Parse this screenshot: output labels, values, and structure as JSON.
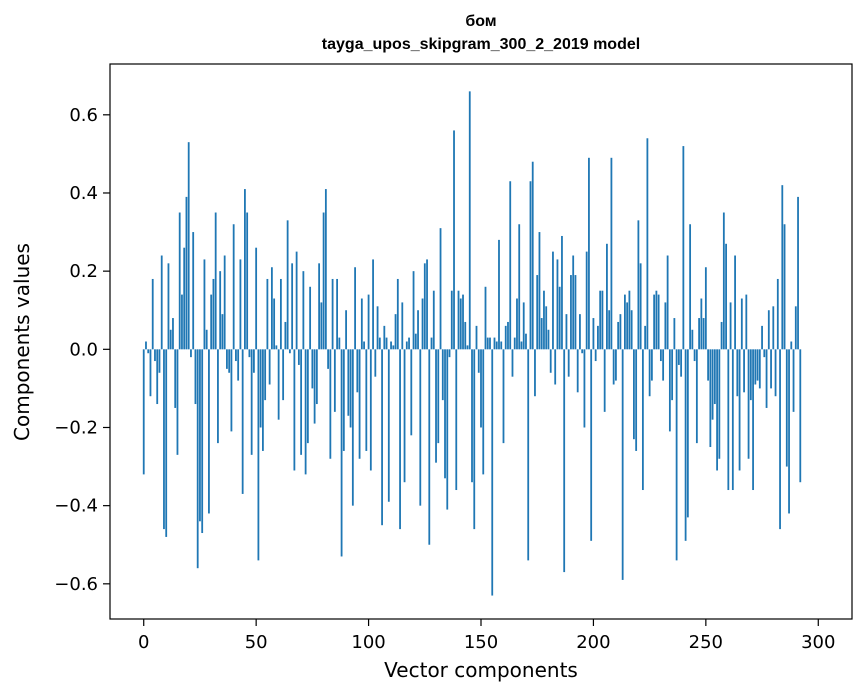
{
  "chart_data": {
    "type": "bar",
    "title": "бом",
    "subtitle": "tayga_upos_skipgram_300_2_2019 model",
    "xlabel": "Vector components",
    "ylabel": "Components values",
    "xlim": [
      -15,
      315
    ],
    "ylim": [
      -0.69,
      0.73
    ],
    "xticks": [
      0,
      50,
      100,
      150,
      200,
      250,
      300
    ],
    "yticks": [
      -0.6,
      -0.4,
      -0.2,
      0.0,
      0.2,
      0.4,
      0.6
    ],
    "xtick_labels": [
      "0",
      "50",
      "100",
      "150",
      "200",
      "250",
      "300"
    ],
    "ytick_labels": [
      "−0.6",
      "−0.4",
      "−0.2",
      "0.0",
      "0.2",
      "0.4",
      "0.6"
    ],
    "bar_color": "#1f77b4",
    "grid": false,
    "values": [
      -0.32,
      0.02,
      -0.01,
      -0.12,
      0.18,
      -0.03,
      -0.14,
      -0.06,
      0.24,
      -0.46,
      -0.48,
      0.22,
      0.05,
      0.08,
      -0.15,
      -0.27,
      0.35,
      0.14,
      0.26,
      0.39,
      0.53,
      -0.02,
      0.3,
      -0.14,
      -0.56,
      -0.44,
      -0.47,
      0.23,
      0.05,
      -0.42,
      0.14,
      0.18,
      0.35,
      -0.24,
      0.2,
      0.09,
      0.24,
      -0.05,
      -0.06,
      -0.21,
      0.32,
      -0.03,
      -0.08,
      0.23,
      -0.37,
      0.41,
      0.35,
      -0.02,
      -0.27,
      -0.06,
      0.26,
      -0.54,
      -0.2,
      -0.26,
      -0.13,
      0.18,
      -0.09,
      0.21,
      0.13,
      0.01,
      -0.18,
      0.18,
      -0.13,
      0.07,
      0.33,
      -0.01,
      0.22,
      -0.31,
      0.25,
      -0.04,
      -0.27,
      0.2,
      -0.32,
      -0.24,
      0.16,
      -0.1,
      -0.19,
      -0.14,
      0.22,
      0.12,
      0.35,
      0.41,
      -0.05,
      -0.28,
      0.18,
      -0.16,
      0.18,
      0.03,
      -0.53,
      -0.26,
      0.1,
      -0.17,
      -0.2,
      -0.4,
      0.21,
      -0.11,
      -0.28,
      0.13,
      0.02,
      -0.26,
      0.14,
      -0.31,
      0.23,
      -0.07,
      0.11,
      0.03,
      -0.45,
      0.06,
      0.03,
      -0.39,
      0.02,
      0.01,
      0.09,
      0.18,
      -0.46,
      0.12,
      -0.34,
      0.02,
      0.03,
      -0.22,
      0.2,
      0.04,
      0.1,
      -0.4,
      0.13,
      0.22,
      0.23,
      -0.5,
      0.03,
      0.15,
      -0.29,
      -0.24,
      0.31,
      -0.13,
      -0.33,
      -0.41,
      -0.02,
      0.15,
      0.56,
      -0.36,
      0.15,
      0.13,
      0.14,
      0.07,
      0.01,
      0.66,
      -0.34,
      -0.46,
      0.06,
      -0.06,
      -0.2,
      -0.32,
      0.16,
      0.03,
      0.03,
      -0.63,
      0.03,
      0.02,
      0.28,
      0.02,
      -0.24,
      0.06,
      0.07,
      0.43,
      -0.07,
      0.03,
      0.13,
      0.32,
      0.02,
      0.12,
      0.04,
      -0.54,
      0.43,
      0.48,
      -0.12,
      0.19,
      0.3,
      0.08,
      0.15,
      0.11,
      0.05,
      -0.06,
      0.25,
      -0.09,
      0.23,
      0.16,
      0.29,
      -0.57,
      0.09,
      -0.07,
      0.19,
      0.24,
      0.19,
      -0.11,
      0.09,
      -0.01,
      -0.2,
      0.25,
      0.49,
      -0.49,
      0.08,
      -0.03,
      0.06,
      0.15,
      0.15,
      -0.16,
      0.27,
      0.1,
      0.49,
      -0.09,
      -0.08,
      0.07,
      0.09,
      -0.59,
      0.14,
      0.12,
      0.15,
      0.1,
      -0.23,
      -0.26,
      0.33,
      0.22,
      -0.36,
      0.06,
      0.54,
      -0.12,
      -0.08,
      0.14,
      0.15,
      0.14,
      -0.03,
      -0.08,
      0.12,
      0.24,
      -0.21,
      -0.13,
      0.08,
      -0.54,
      -0.04,
      -0.07,
      0.52,
      -0.49,
      -0.43,
      0.32,
      0.05,
      -0.03,
      -0.24,
      0.08,
      0.13,
      0.08,
      0.21,
      -0.08,
      -0.25,
      -0.18,
      -0.14,
      -0.31,
      -0.28,
      0.07,
      0.35,
      0.27,
      -0.36,
      0.12,
      -0.36,
      0.24,
      -0.12,
      -0.31,
      0.13,
      -0.11,
      0.14,
      -0.28,
      -0.13,
      -0.36,
      -0.09,
      -0.08,
      -0.1,
      0.06,
      -0.02,
      -0.15,
      0.1,
      -0.1,
      0.11,
      -0.12,
      0.18,
      -0.46,
      0.42,
      0.32,
      -0.3,
      -0.42,
      0.02,
      -0.16,
      0.11,
      0.39,
      -0.34
    ]
  }
}
